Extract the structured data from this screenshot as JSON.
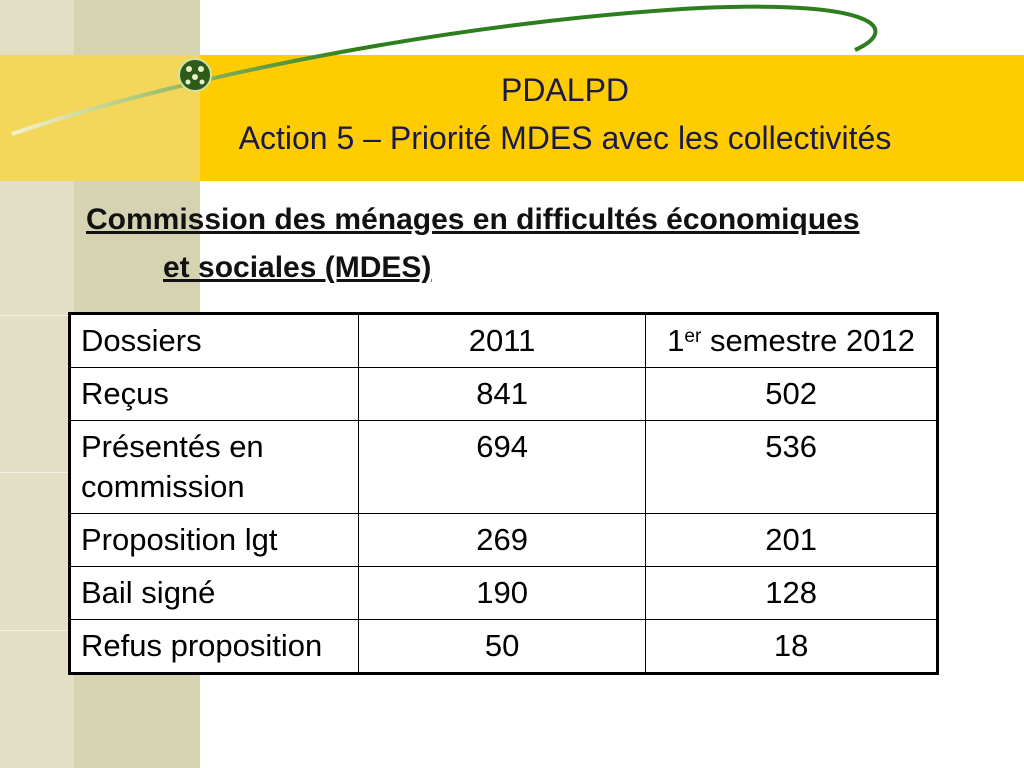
{
  "header": {
    "title_line1": "PDALPD",
    "title_line2": "Action 5 – Priorité MDES avec les collectivités"
  },
  "subtitle": {
    "line1": "Commission des ménages en difficultés économiques",
    "line2": "et sociales (MDES)"
  },
  "table": {
    "headers": {
      "col1": "Dossiers",
      "col2": "2011",
      "col3_prefix": "1",
      "col3_sup": "er",
      "col3_suffix": " semestre 2012"
    },
    "rows": [
      {
        "label": "Reçus",
        "v2011": "841",
        "v2012": "502"
      },
      {
        "label": "Présentés en commission",
        "v2011": "694",
        "v2012": "536"
      },
      {
        "label": "Proposition lgt",
        "v2011": "269",
        "v2012": "201"
      },
      {
        "label": "Bail signé",
        "v2011": "190",
        "v2012": "128"
      },
      {
        "label": "Refus proposition",
        "v2011": "50",
        "v2012": "18"
      }
    ]
  },
  "colors": {
    "title_bar": "#fecc00",
    "left_band": "#d6d3b3",
    "arc": "#2e7d1e"
  }
}
